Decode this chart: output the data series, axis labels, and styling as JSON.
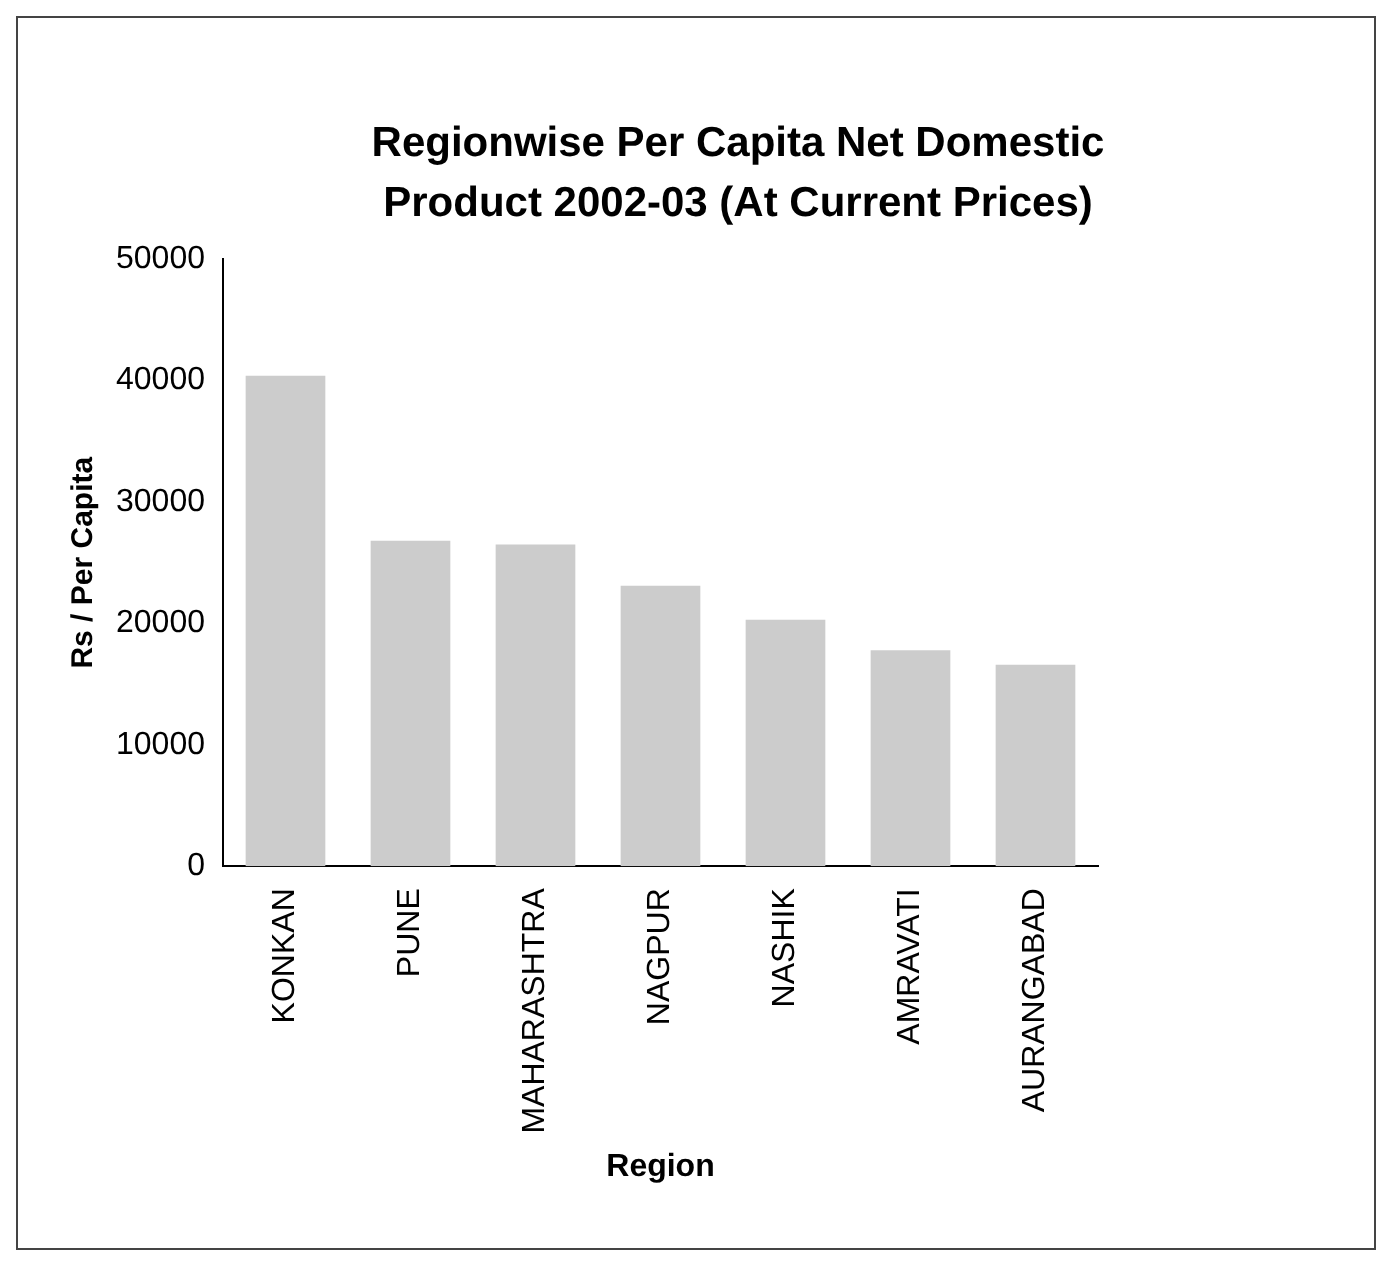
{
  "chart_data": {
    "type": "bar",
    "title": "Regionwise Per Capita Net Domestic Product 2002-03 (At Current Prices)",
    "xlabel": "Region",
    "ylabel": "Rs / Per Capita",
    "categories": [
      "KONKAN",
      "PUNE",
      "MAHARASHTRA",
      "NAGPUR",
      "NASHIK",
      "AMRAVATI",
      "AURANGABAD"
    ],
    "values": [
      40400,
      26800,
      26500,
      23100,
      20300,
      17800,
      16600
    ],
    "color": "#cccccc",
    "ylim": [
      0,
      50000
    ],
    "yticks": [
      0,
      10000,
      20000,
      30000,
      40000,
      50000
    ],
    "grid": false,
    "legend": false
  }
}
